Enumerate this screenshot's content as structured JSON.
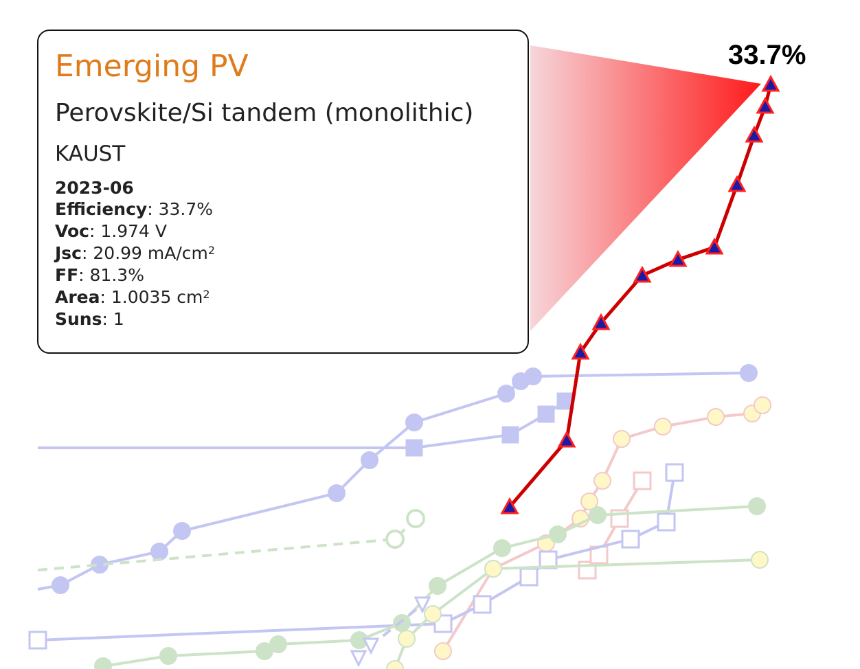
{
  "chart_data": {
    "type": "line",
    "title": "",
    "xlabel": "",
    "ylabel": "",
    "grid": false,
    "highlight": {
      "label": "33.7%",
      "value": 33.7,
      "color": "#cc0000",
      "marker_fill": "#1a1aa6",
      "marker_stroke": "#ff2020",
      "marker": "triangle"
    },
    "background_series_colors": [
      "#c3c6f2",
      "#cde3c8",
      "#fff8c6",
      "#f3c9c9"
    ]
  },
  "tooltip": {
    "category": "Emerging PV",
    "technology": "Perovskite/Si tandem (monolithic)",
    "institution": "KAUST",
    "date": "2023-06",
    "efficiency_label": "Efficiency",
    "efficiency": ": 33.7%",
    "voc_label": "Voc",
    "voc": ": 1.974 V",
    "jsc_label": "Jsc",
    "jsc": ": 20.99 mA/cm",
    "ff_label": "FF",
    "ff": ": 81.3%",
    "area_label": "Area",
    "area": ": 1.0035 cm",
    "suns_label": "Suns",
    "suns": ": 1",
    "sup": "2"
  }
}
